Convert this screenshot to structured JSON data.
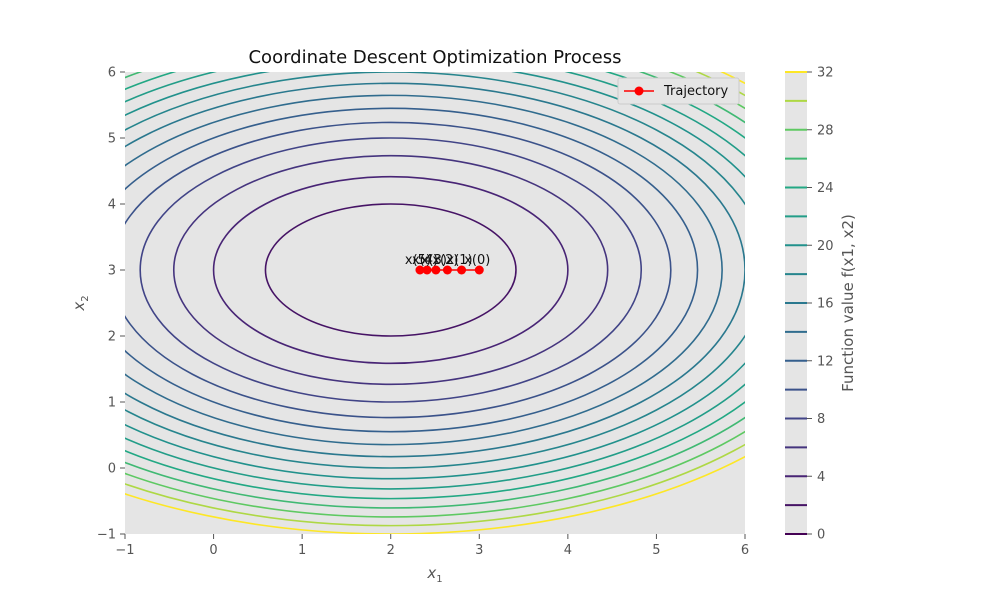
{
  "chart_data": {
    "type": "contour",
    "title": "Coordinate Descent Optimization Process",
    "xlabel": {
      "main": "x",
      "sub": "1"
    },
    "ylabel": {
      "main": "x",
      "sub": "2"
    },
    "xlim": [
      -1,
      6
    ],
    "ylim": [
      -1,
      6
    ],
    "xticks": [
      "−1",
      "0",
      "1",
      "2",
      "3",
      "4",
      "5",
      "6"
    ],
    "xtick_values": [
      -1,
      0,
      1,
      2,
      3,
      4,
      5,
      6
    ],
    "yticks": [
      "−1",
      "0",
      "1",
      "2",
      "3",
      "4",
      "5",
      "6"
    ],
    "ytick_values": [
      -1,
      0,
      1,
      2,
      3,
      4,
      5,
      6
    ],
    "grid": false,
    "background": "#e5e5e5",
    "function": {
      "center": [
        2,
        3
      ],
      "coef_x1": 1,
      "coef_x2": 2
    },
    "contour_levels": [
      2,
      4,
      6,
      8,
      10,
      12,
      14,
      16,
      18,
      20,
      22,
      24,
      26,
      28,
      30,
      32
    ],
    "colorbar": {
      "label": "Function value f(x1, x2)",
      "range": [
        0,
        32
      ],
      "tick_values": [
        0,
        4,
        8,
        12,
        16,
        20,
        24,
        28,
        32
      ],
      "ticks": [
        "0",
        "4",
        "8",
        "12",
        "16",
        "20",
        "24",
        "28",
        "32"
      ],
      "levels": [
        0,
        2,
        4,
        6,
        8,
        10,
        12,
        14,
        16,
        18,
        20,
        22,
        24,
        26,
        28,
        30,
        32
      ],
      "colormap": "viridis"
    },
    "legend": {
      "entries": [
        "Trajectory"
      ],
      "placement": "top-right"
    },
    "trajectory": {
      "name": "Trajectory",
      "color": "#ff0000",
      "points": [
        {
          "x": 3.0,
          "y": 3.0,
          "label": "x(0)"
        },
        {
          "x": 2.8,
          "y": 3.0,
          "label": "x(1)"
        },
        {
          "x": 2.64,
          "y": 3.0,
          "label": "x(2)"
        },
        {
          "x": 2.51,
          "y": 3.0,
          "label": "x(3)"
        },
        {
          "x": 2.41,
          "y": 3.0,
          "label": "x(4)"
        },
        {
          "x": 2.33,
          "y": 3.0,
          "label": "x(5)"
        }
      ]
    }
  }
}
